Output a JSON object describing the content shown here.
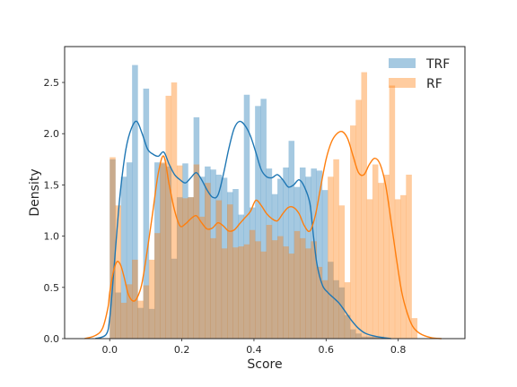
{
  "chart_data": {
    "type": "histogram",
    "xlabel": "Score",
    "ylabel": "Density",
    "xlim": [
      -0.125,
      0.985
    ],
    "ylim": [
      0,
      2.85
    ],
    "xticks": [
      0.0,
      0.2,
      0.4,
      0.6,
      0.8
    ],
    "xtick_labels": [
      "0.0",
      "0.2",
      "0.4",
      "0.6",
      "0.8"
    ],
    "yticks": [
      0.0,
      0.5,
      1.0,
      1.5,
      2.0,
      2.5
    ],
    "ytick_labels": [
      "0.0",
      "0.5",
      "1.0",
      "1.5",
      "2.0",
      "2.5"
    ],
    "grid": false,
    "legend_position": "top-right",
    "series": [
      {
        "name": "TRF",
        "color": "#1f77b4",
        "bin_start": 0.0,
        "bin_width": 0.0155,
        "bar_opacity": 0.4,
        "hist": [
          1.75,
          0.45,
          1.58,
          1.72,
          2.67,
          0.3,
          2.44,
          0.29,
          1.72,
          1.71,
          1.68,
          0.78,
          1.38,
          1.71,
          1.38,
          2.16,
          1.58,
          1.68,
          1.65,
          1.6,
          1.57,
          1.43,
          1.46,
          1.21,
          2.38,
          1.28,
          2.27,
          2.34,
          1.66,
          1.41,
          1.56,
          1.67,
          1.93,
          1.48,
          1.67,
          1.58,
          1.66,
          1.64,
          1.45,
          0.75,
          0.57,
          0.5,
          0.23,
          0.09,
          0.05,
          0.02,
          0.02,
          0.02,
          0.02,
          0.0,
          0.0,
          0.0,
          0.0,
          0.0,
          0.0
        ],
        "kde": [
          [
            -0.04,
            0.0
          ],
          [
            -0.01,
            0.04
          ],
          [
            0.0,
            0.2
          ],
          [
            0.01,
            0.6
          ],
          [
            0.02,
            1.05
          ],
          [
            0.03,
            1.45
          ],
          [
            0.045,
            1.85
          ],
          [
            0.06,
            2.05
          ],
          [
            0.075,
            2.12
          ],
          [
            0.09,
            2.0
          ],
          [
            0.105,
            1.85
          ],
          [
            0.12,
            1.8
          ],
          [
            0.135,
            1.78
          ],
          [
            0.15,
            1.82
          ],
          [
            0.165,
            1.7
          ],
          [
            0.18,
            1.6
          ],
          [
            0.195,
            1.55
          ],
          [
            0.21,
            1.52
          ],
          [
            0.225,
            1.57
          ],
          [
            0.24,
            1.62
          ],
          [
            0.255,
            1.55
          ],
          [
            0.27,
            1.45
          ],
          [
            0.285,
            1.38
          ],
          [
            0.3,
            1.4
          ],
          [
            0.315,
            1.6
          ],
          [
            0.33,
            1.85
          ],
          [
            0.345,
            2.05
          ],
          [
            0.36,
            2.12
          ],
          [
            0.375,
            2.08
          ],
          [
            0.39,
            1.98
          ],
          [
            0.405,
            1.82
          ],
          [
            0.42,
            1.65
          ],
          [
            0.435,
            1.58
          ],
          [
            0.45,
            1.57
          ],
          [
            0.465,
            1.6
          ],
          [
            0.48,
            1.55
          ],
          [
            0.495,
            1.48
          ],
          [
            0.51,
            1.5
          ],
          [
            0.525,
            1.55
          ],
          [
            0.54,
            1.48
          ],
          [
            0.555,
            1.32
          ],
          [
            0.565,
            1.0
          ],
          [
            0.575,
            0.72
          ],
          [
            0.59,
            0.52
          ],
          [
            0.605,
            0.45
          ],
          [
            0.62,
            0.4
          ],
          [
            0.635,
            0.35
          ],
          [
            0.65,
            0.28
          ],
          [
            0.67,
            0.18
          ],
          [
            0.69,
            0.1
          ],
          [
            0.71,
            0.05
          ],
          [
            0.74,
            0.02
          ],
          [
            0.78,
            0.0
          ]
        ]
      },
      {
        "name": "RF",
        "color": "#ff7f0e",
        "bin_start": 0.0,
        "bin_width": 0.0155,
        "bar_opacity": 0.4,
        "hist": [
          1.77,
          1.3,
          0.35,
          0.53,
          0.77,
          0.37,
          0.52,
          0.77,
          1.03,
          1.72,
          2.37,
          2.5,
          1.69,
          1.37,
          1.38,
          1.7,
          1.19,
          1.52,
          0.98,
          1.35,
          0.88,
          1.31,
          0.89,
          0.9,
          0.92,
          1.06,
          0.95,
          0.85,
          1.11,
          0.96,
          1.0,
          0.9,
          0.83,
          1.05,
          0.98,
          0.88,
          0.95,
          0.7,
          0.57,
          1.58,
          1.75,
          1.3,
          0.55,
          2.08,
          2.33,
          2.6,
          1.36,
          1.7,
          1.52,
          1.6,
          2.47,
          1.36,
          1.4,
          1.6,
          0.2
        ],
        "kde": [
          [
            -0.07,
            0.0
          ],
          [
            -0.04,
            0.03
          ],
          [
            -0.02,
            0.1
          ],
          [
            -0.005,
            0.3
          ],
          [
            0.0,
            0.45
          ],
          [
            0.01,
            0.65
          ],
          [
            0.02,
            0.75
          ],
          [
            0.03,
            0.72
          ],
          [
            0.04,
            0.6
          ],
          [
            0.05,
            0.45
          ],
          [
            0.06,
            0.38
          ],
          [
            0.07,
            0.37
          ],
          [
            0.08,
            0.43
          ],
          [
            0.09,
            0.55
          ],
          [
            0.105,
            0.88
          ],
          [
            0.12,
            1.25
          ],
          [
            0.135,
            1.62
          ],
          [
            0.15,
            1.78
          ],
          [
            0.165,
            1.5
          ],
          [
            0.18,
            1.25
          ],
          [
            0.195,
            1.1
          ],
          [
            0.21,
            1.12
          ],
          [
            0.225,
            1.17
          ],
          [
            0.24,
            1.2
          ],
          [
            0.255,
            1.13
          ],
          [
            0.27,
            1.07
          ],
          [
            0.285,
            1.08
          ],
          [
            0.3,
            1.13
          ],
          [
            0.315,
            1.1
          ],
          [
            0.33,
            1.05
          ],
          [
            0.345,
            1.06
          ],
          [
            0.36,
            1.12
          ],
          [
            0.375,
            1.18
          ],
          [
            0.39,
            1.24
          ],
          [
            0.405,
            1.35
          ],
          [
            0.42,
            1.3
          ],
          [
            0.435,
            1.22
          ],
          [
            0.45,
            1.17
          ],
          [
            0.465,
            1.15
          ],
          [
            0.48,
            1.22
          ],
          [
            0.495,
            1.28
          ],
          [
            0.51,
            1.28
          ],
          [
            0.525,
            1.22
          ],
          [
            0.54,
            1.1
          ],
          [
            0.555,
            1.05
          ],
          [
            0.57,
            1.2
          ],
          [
            0.585,
            1.48
          ],
          [
            0.6,
            1.75
          ],
          [
            0.615,
            1.92
          ],
          [
            0.63,
            2.0
          ],
          [
            0.645,
            2.02
          ],
          [
            0.66,
            1.95
          ],
          [
            0.675,
            1.78
          ],
          [
            0.69,
            1.62
          ],
          [
            0.705,
            1.6
          ],
          [
            0.72,
            1.7
          ],
          [
            0.735,
            1.76
          ],
          [
            0.75,
            1.7
          ],
          [
            0.765,
            1.5
          ],
          [
            0.78,
            1.15
          ],
          [
            0.795,
            0.78
          ],
          [
            0.81,
            0.45
          ],
          [
            0.825,
            0.25
          ],
          [
            0.84,
            0.12
          ],
          [
            0.86,
            0.05
          ],
          [
            0.89,
            0.01
          ],
          [
            0.92,
            0.0
          ]
        ]
      }
    ]
  }
}
